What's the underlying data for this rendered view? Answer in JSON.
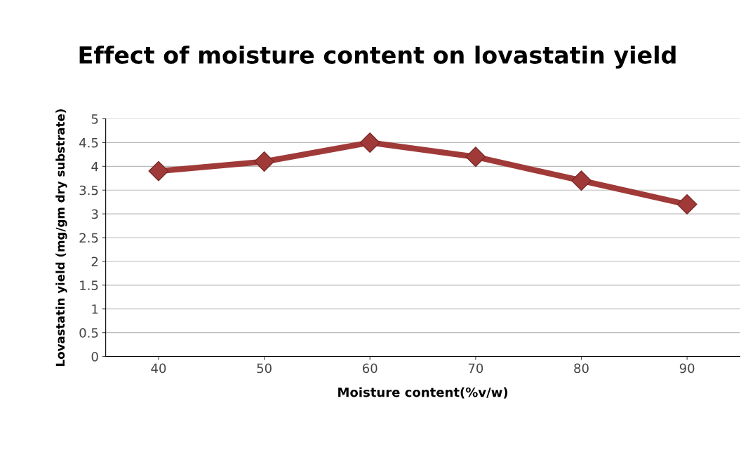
{
  "chart_data": {
    "type": "line",
    "title": "Effect of moisture content on lovastatin yield",
    "xlabel": "Moisture content(%v/w)",
    "ylabel": "Lovastatin yield (mg/gm dry substrate)",
    "categories": [
      "40",
      "50",
      "60",
      "70",
      "80",
      "90"
    ],
    "series": [
      {
        "color": "#a03a38",
        "values": [
          3.9,
          4.1,
          4.5,
          4.2,
          3.7,
          3.2
        ]
      }
    ],
    "ylim": [
      0,
      5
    ],
    "yticks": [
      0,
      0.5,
      1,
      1.5,
      2,
      2.5,
      3,
      3.5,
      4,
      4.5,
      5
    ],
    "grid": "y",
    "marker": "diamond",
    "line_style": "solid"
  }
}
